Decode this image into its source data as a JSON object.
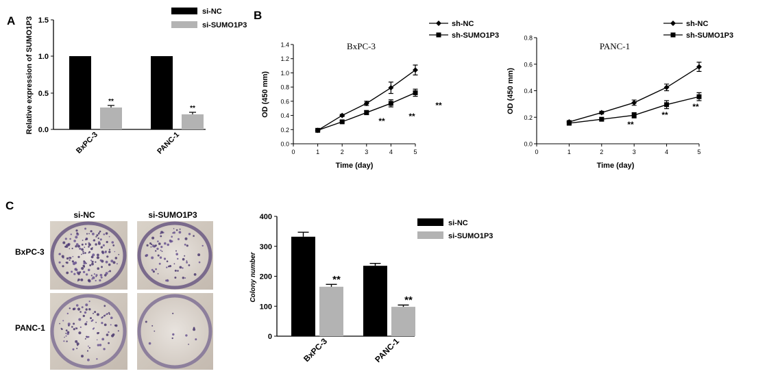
{
  "panel_labels": {
    "a": "A",
    "b": "B",
    "c": "C"
  },
  "colors": {
    "black": "#000000",
    "gray": "#b3b3b3"
  },
  "chart_data": [
    {
      "id": "panel-a",
      "type": "bar",
      "categories": [
        "BxPC-3",
        "PANC-1"
      ],
      "series": [
        {
          "name": "si-NC",
          "values": [
            1.0,
            1.0
          ],
          "errors": [
            0,
            0
          ]
        },
        {
          "name": "si-SUMO1P3",
          "values": [
            0.3,
            0.21
          ],
          "errors": [
            0.025,
            0.025
          ]
        }
      ],
      "annotations": [
        "**",
        "**"
      ],
      "ylabel": "Relative expression of SUMO1P3",
      "ylim": [
        0,
        1.5
      ],
      "yticks": [
        "0.0",
        "0.5",
        "1.0",
        "1.5"
      ],
      "legend_position": "top-right"
    },
    {
      "id": "panel-b-bxpc3",
      "type": "line",
      "title": "BxPC-3",
      "x": [
        1,
        2,
        3,
        4,
        5
      ],
      "series": [
        {
          "name": "sh-NC",
          "values": [
            0.19,
            0.4,
            0.57,
            0.79,
            1.04
          ],
          "errors": [
            0.01,
            0.015,
            0.03,
            0.08,
            0.07
          ]
        },
        {
          "name": "sh-SUMO1P3",
          "values": [
            0.19,
            0.31,
            0.44,
            0.57,
            0.72
          ],
          "errors": [
            0.01,
            0.015,
            0.03,
            0.05,
            0.05
          ]
        }
      ],
      "annotations": [
        "**",
        "**",
        "**"
      ],
      "xlabel": "Time (day)",
      "ylabel": "OD (450 mm)",
      "xlim": [
        0,
        5
      ],
      "ylim": [
        0,
        1.4
      ],
      "xticks": [
        "0",
        "1",
        "2",
        "3",
        "4",
        "5"
      ],
      "yticks": [
        "0.0",
        "0.2",
        "0.4",
        "0.6",
        "0.8",
        "1.0",
        "1.2",
        "1.4"
      ],
      "legend_position": "top-right"
    },
    {
      "id": "panel-b-panc1",
      "type": "line",
      "title": "PANC-1",
      "x": [
        1,
        2,
        3,
        4,
        5
      ],
      "series": [
        {
          "name": "sh-NC",
          "values": [
            0.165,
            0.235,
            0.31,
            0.425,
            0.58
          ],
          "errors": [
            0.01,
            0.01,
            0.02,
            0.025,
            0.035
          ]
        },
        {
          "name": "sh-SUMO1P3",
          "values": [
            0.155,
            0.185,
            0.215,
            0.295,
            0.355
          ],
          "errors": [
            0.01,
            0.01,
            0.02,
            0.03,
            0.03
          ]
        }
      ],
      "annotations": [
        "**",
        "**",
        "**"
      ],
      "xlabel": "Time (day)",
      "ylabel": "OD (450 mm)",
      "xlim": [
        0,
        5
      ],
      "ylim": [
        0,
        0.8
      ],
      "xticks": [
        "0",
        "1",
        "2",
        "3",
        "4",
        "5"
      ],
      "yticks": [
        "0.0",
        "0.2",
        "0.4",
        "0.6",
        "0.8"
      ],
      "legend_position": "top-right"
    },
    {
      "id": "panel-c",
      "type": "bar",
      "categories": [
        "BxPC-3",
        "PANC-1"
      ],
      "series": [
        {
          "name": "si-NC",
          "values": [
            332,
            235
          ],
          "errors": [
            15,
            8
          ]
        },
        {
          "name": "si-SUMO1P3",
          "values": [
            165,
            98
          ],
          "errors": [
            8,
            6
          ]
        }
      ],
      "annotations": [
        "**",
        "**"
      ],
      "ylabel": "Colony number",
      "ylim": [
        0,
        400
      ],
      "yticks": [
        "0",
        "100",
        "200",
        "300",
        "400"
      ],
      "legend_position": "top-right"
    }
  ],
  "colony_photos": {
    "col_labels": [
      "si-NC",
      "si-SUMO1P3"
    ],
    "row_labels": [
      "BxPC-3",
      "PANC-1"
    ]
  }
}
